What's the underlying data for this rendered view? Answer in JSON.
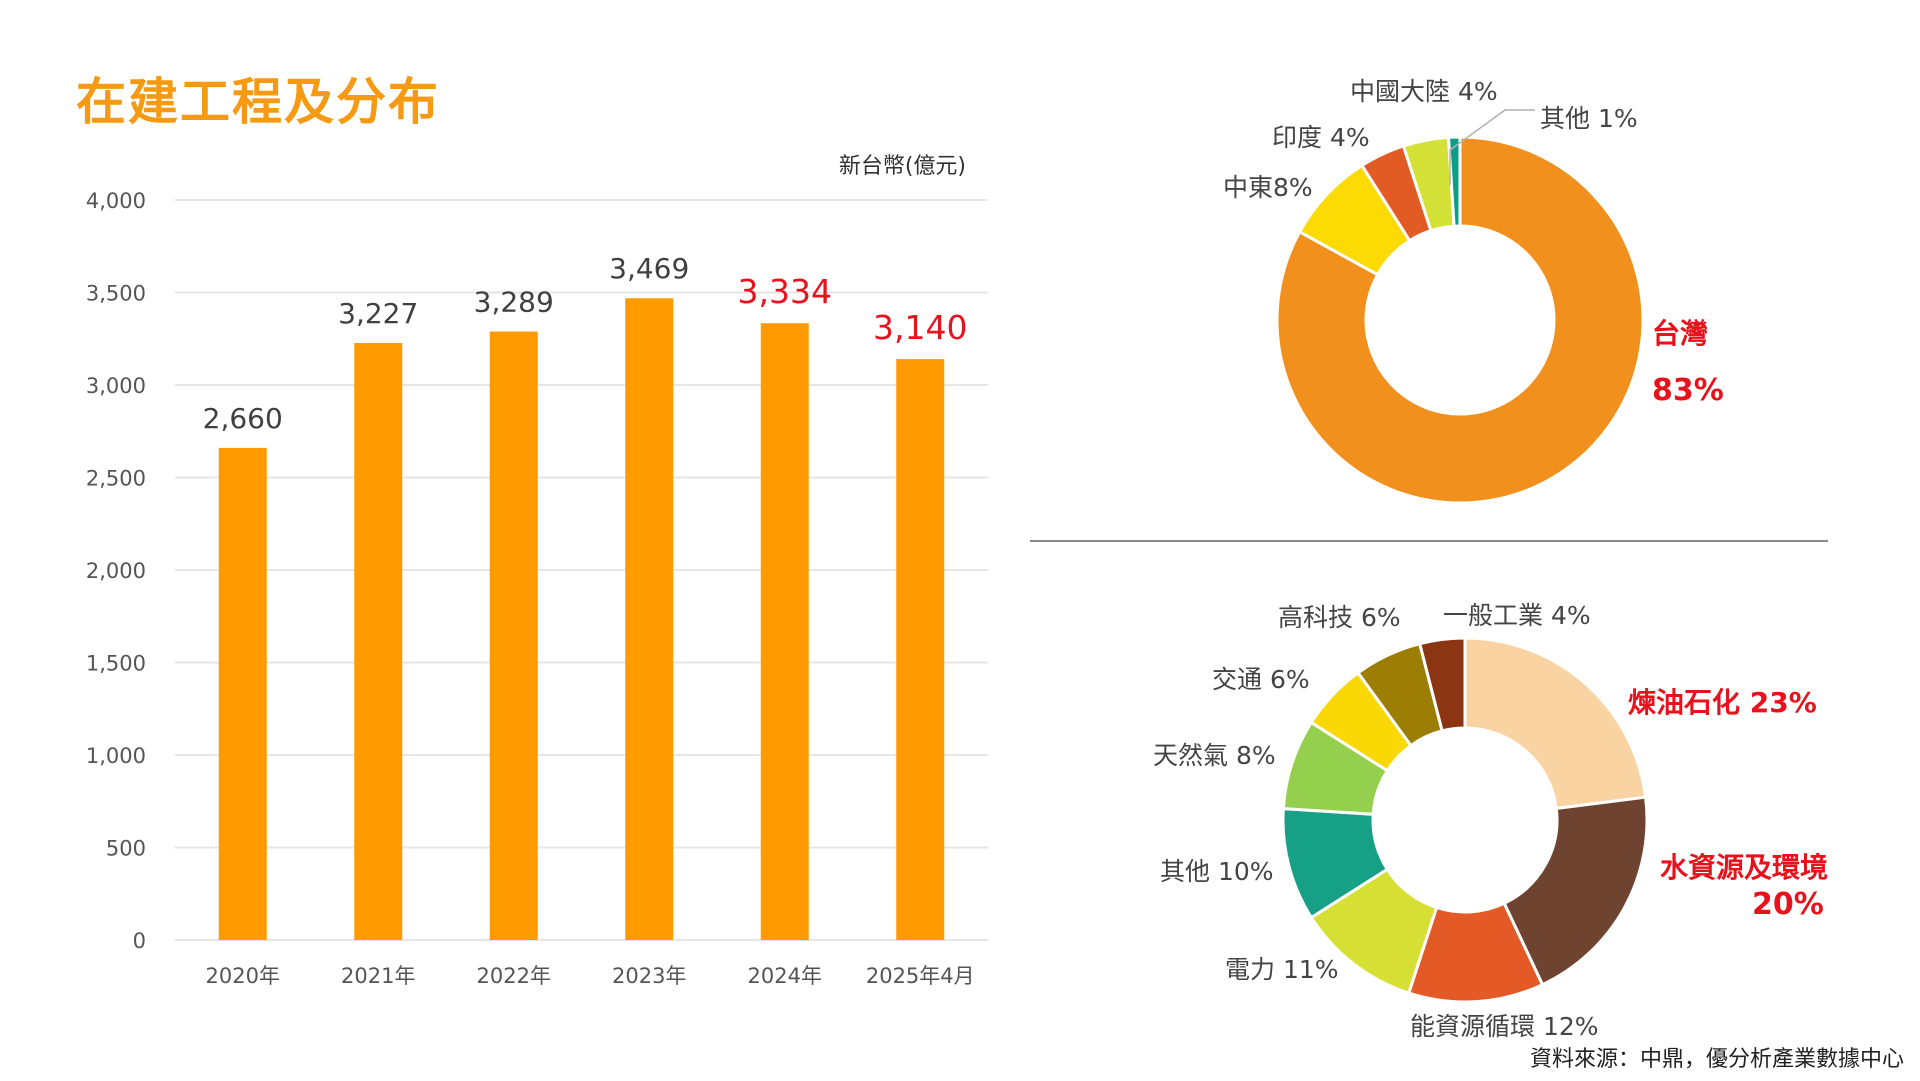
{
  "title": "在建工程及分布",
  "source": "資料來源：中鼎，優分析產業數據中心",
  "colors": {
    "title": "#F59A12",
    "bar": "#FF9A00",
    "highlight": "#E8121D",
    "label": "#404040",
    "axis_text": "#555555",
    "grid": "#e6e6e6",
    "divider": "#8a8a8a"
  },
  "chart_data": [
    {
      "type": "bar",
      "unit": "新台幣(億元)",
      "categories": [
        "2020年",
        "2021年",
        "2022年",
        "2023年",
        "2024年",
        "2025年4月"
      ],
      "values": [
        2660,
        3227,
        3289,
        3469,
        3334,
        3140
      ],
      "value_labels": [
        "2,660",
        "3,227",
        "3,289",
        "3,469",
        "3,334",
        "3,140"
      ],
      "highlighted": [
        false,
        false,
        false,
        false,
        true,
        true
      ],
      "yticks": [
        "0",
        "500",
        "1,000",
        "1,500",
        "2,000",
        "2,500",
        "3,000",
        "3,500",
        "4,000"
      ],
      "ylim": [
        0,
        4000
      ],
      "grid": true
    },
    {
      "type": "pie",
      "variant": "donut",
      "slices": [
        {
          "label": "台灣",
          "pct_label": "83%",
          "value": 83,
          "color": "#F2901D",
          "highlight": true
        },
        {
          "label": "中東8%",
          "value": 8,
          "color": "#FCDA04",
          "highlight": false
        },
        {
          "label": "印度 4%",
          "value": 4,
          "color": "#E25B25",
          "highlight": false
        },
        {
          "label": "中國大陸 4%",
          "value": 4,
          "color": "#D4E137",
          "highlight": false
        },
        {
          "label": "其他 1%",
          "value": 1,
          "color": "#0D9E86",
          "highlight": false
        }
      ]
    },
    {
      "type": "pie",
      "variant": "donut",
      "slices": [
        {
          "label": "煉油石化 23%",
          "value": 23,
          "color": "#F9D3A1",
          "highlight": true
        },
        {
          "label": "水資源及環境",
          "pct_label": "20%",
          "value": 20,
          "color": "#6E4330",
          "highlight": true
        },
        {
          "label": "能資源循環 12%",
          "value": 12,
          "color": "#E45A26",
          "highlight": false
        },
        {
          "label": "電力 11%",
          "value": 11,
          "color": "#D6DF33",
          "highlight": false
        },
        {
          "label": "其他 10%",
          "value": 10,
          "color": "#16A085",
          "highlight": false
        },
        {
          "label": "天然氣 8%",
          "value": 8,
          "color": "#95CF4E",
          "highlight": false
        },
        {
          "label": "交通 6%",
          "value": 6,
          "color": "#FAD806",
          "highlight": false
        },
        {
          "label": "高科技 6%",
          "value": 6,
          "color": "#9B7E03",
          "highlight": false
        },
        {
          "label": "一般工業 4%",
          "value": 4,
          "color": "#8B3513",
          "highlight": false
        }
      ]
    }
  ]
}
